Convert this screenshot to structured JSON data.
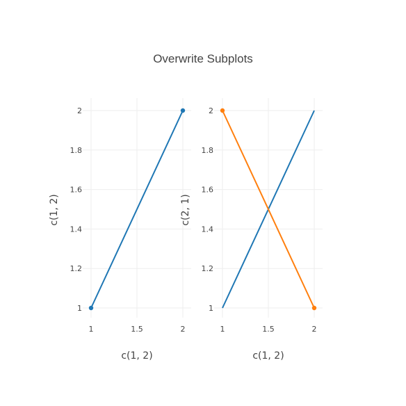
{
  "chart_data": {
    "type": "line",
    "title": "Overwrite Subplots",
    "subplots": [
      {
        "xlabel": "c(1, 2)",
        "ylabel": "c(1, 2)",
        "xlim": [
          1,
          2
        ],
        "ylim": [
          1,
          2
        ],
        "x_ticks": [
          "1",
          "1.5",
          "2"
        ],
        "y_ticks": [
          "1",
          "1.2",
          "1.4",
          "1.6",
          "1.8",
          "2"
        ],
        "grid": true,
        "series": [
          {
            "x": [
              1,
              2
            ],
            "y": [
              1,
              2
            ],
            "color": "#1f77b4",
            "markers": true
          }
        ]
      },
      {
        "xlabel": "c(1, 2)",
        "ylabel": "c(2, 1)",
        "xlim": [
          1,
          2
        ],
        "ylim": [
          1,
          2
        ],
        "x_ticks": [
          "1",
          "1.5",
          "2"
        ],
        "y_ticks": [
          "1",
          "1.2",
          "1.4",
          "1.6",
          "1.8",
          "2"
        ],
        "grid": true,
        "series": [
          {
            "x": [
              1,
              2
            ],
            "y": [
              1,
              2
            ],
            "color": "#1f77b4",
            "markers": false
          },
          {
            "x": [
              1,
              2
            ],
            "y": [
              2,
              1
            ],
            "color": "#ff7f0e",
            "markers": true
          }
        ]
      }
    ]
  }
}
